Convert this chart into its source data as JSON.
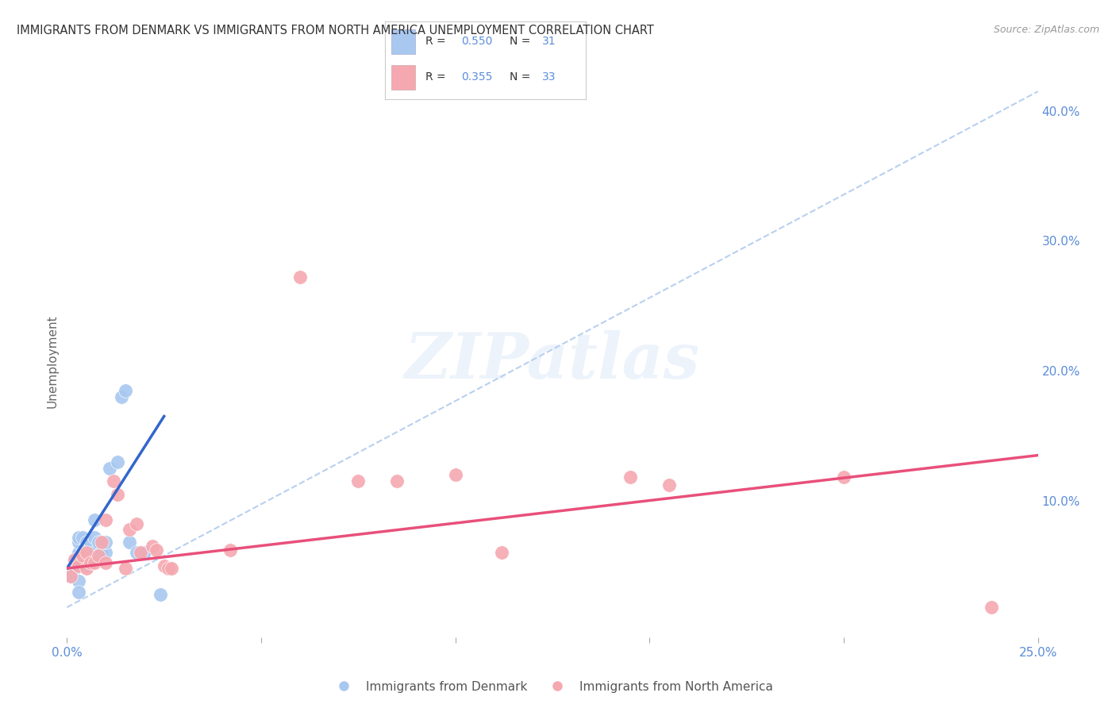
{
  "title": "IMMIGRANTS FROM DENMARK VS IMMIGRANTS FROM NORTH AMERICA UNEMPLOYMENT CORRELATION CHART",
  "source": "Source: ZipAtlas.com",
  "ylabel": "Unemployment",
  "xlim": [
    0.0,
    0.25
  ],
  "ylim": [
    -0.005,
    0.42
  ],
  "yticks_right": [
    0.1,
    0.2,
    0.3,
    0.4
  ],
  "ytick_labels_right": [
    "10.0%",
    "20.0%",
    "30.0%",
    "40.0%"
  ],
  "xticks": [
    0.0,
    0.05,
    0.1,
    0.15,
    0.2,
    0.25
  ],
  "xtick_labels": [
    "0.0%",
    "",
    "",
    "",
    "",
    "25.0%"
  ],
  "legend_R_N": [
    {
      "R": "0.550",
      "N": "31"
    },
    {
      "R": "0.355",
      "N": "33"
    }
  ],
  "blue_scatter": [
    [
      0.001,
      0.042
    ],
    [
      0.002,
      0.048
    ],
    [
      0.002,
      0.055
    ],
    [
      0.003,
      0.06
    ],
    [
      0.003,
      0.068
    ],
    [
      0.003,
      0.072
    ],
    [
      0.004,
      0.055
    ],
    [
      0.004,
      0.06
    ],
    [
      0.004,
      0.072
    ],
    [
      0.005,
      0.05
    ],
    [
      0.005,
      0.068
    ],
    [
      0.006,
      0.06
    ],
    [
      0.006,
      0.068
    ],
    [
      0.007,
      0.06
    ],
    [
      0.007,
      0.072
    ],
    [
      0.007,
      0.085
    ],
    [
      0.008,
      0.058
    ],
    [
      0.008,
      0.068
    ],
    [
      0.009,
      0.06
    ],
    [
      0.01,
      0.06
    ],
    [
      0.01,
      0.068
    ],
    [
      0.011,
      0.125
    ],
    [
      0.013,
      0.13
    ],
    [
      0.014,
      0.18
    ],
    [
      0.015,
      0.185
    ],
    [
      0.016,
      0.068
    ],
    [
      0.018,
      0.06
    ],
    [
      0.02,
      0.06
    ],
    [
      0.024,
      0.028
    ],
    [
      0.003,
      0.038
    ],
    [
      0.003,
      0.03
    ]
  ],
  "pink_scatter": [
    [
      0.001,
      0.042
    ],
    [
      0.002,
      0.055
    ],
    [
      0.003,
      0.05
    ],
    [
      0.004,
      0.058
    ],
    [
      0.005,
      0.048
    ],
    [
      0.005,
      0.06
    ],
    [
      0.006,
      0.052
    ],
    [
      0.007,
      0.052
    ],
    [
      0.008,
      0.058
    ],
    [
      0.009,
      0.068
    ],
    [
      0.01,
      0.085
    ],
    [
      0.01,
      0.052
    ],
    [
      0.012,
      0.115
    ],
    [
      0.013,
      0.105
    ],
    [
      0.015,
      0.048
    ],
    [
      0.016,
      0.078
    ],
    [
      0.018,
      0.082
    ],
    [
      0.019,
      0.06
    ],
    [
      0.022,
      0.065
    ],
    [
      0.023,
      0.062
    ],
    [
      0.025,
      0.05
    ],
    [
      0.026,
      0.048
    ],
    [
      0.027,
      0.048
    ],
    [
      0.042,
      0.062
    ],
    [
      0.06,
      0.272
    ],
    [
      0.075,
      0.115
    ],
    [
      0.085,
      0.115
    ],
    [
      0.1,
      0.12
    ],
    [
      0.112,
      0.06
    ],
    [
      0.145,
      0.118
    ],
    [
      0.155,
      0.112
    ],
    [
      0.2,
      0.118
    ],
    [
      0.238,
      0.018
    ]
  ],
  "blue_line_solid": {
    "x": [
      0.0,
      0.025
    ],
    "y": [
      0.048,
      0.165
    ]
  },
  "blue_line_dashed": {
    "x": [
      0.0,
      0.25
    ],
    "y": [
      0.018,
      0.415
    ]
  },
  "pink_line": {
    "x": [
      0.0,
      0.25
    ],
    "y": [
      0.048,
      0.135
    ]
  },
  "scatter_blue_color": "#a8c8f0",
  "scatter_pink_color": "#f5a8b0",
  "regression_blue_color": "#3366cc",
  "regression_pink_color": "#e8507a",
  "dashed_blue_color": "#b8d0f0",
  "grid_color": "#d8d8d8",
  "axis_label_color": "#5b8dd9",
  "watermark_text": "ZIPatlas",
  "background_color": "#ffffff"
}
